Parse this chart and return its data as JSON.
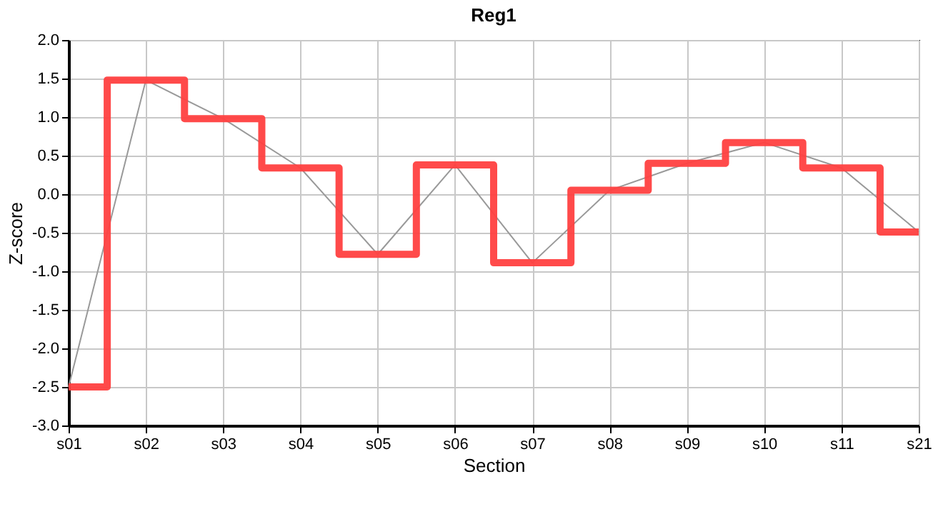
{
  "chart_data": {
    "type": "line",
    "title": "Reg1",
    "xlabel": "Section",
    "ylabel": "Z-score",
    "categories": [
      "s01",
      "s02",
      "s03",
      "s04",
      "s05",
      "s06",
      "s07",
      "s08",
      "s09",
      "s10",
      "s11",
      "s21"
    ],
    "series": [
      {
        "color": "#999999",
        "values": [
          -2.5,
          1.48,
          0.98,
          0.34,
          -0.78,
          0.38,
          -0.89,
          0.05,
          0.4,
          0.67,
          0.34,
          -0.49
        ]
      },
      {
        "type": "step",
        "color": "#ff4040",
        "values": [
          -2.5,
          1.48,
          0.98,
          0.34,
          -0.78,
          0.38,
          -0.89,
          0.05,
          0.4,
          0.67,
          0.34,
          -0.49
        ]
      }
    ],
    "ylim": [
      -3,
      2
    ],
    "yticks": [
      {
        "value": -3,
        "label": "-3.0"
      },
      {
        "value": -2.5,
        "label": "-2.5"
      },
      {
        "value": -2,
        "label": "-2.0"
      },
      {
        "value": -1.5,
        "label": "-1.5"
      },
      {
        "value": -1,
        "label": "-1.0"
      },
      {
        "value": -0.5,
        "label": "-0.5"
      },
      {
        "value": 0,
        "label": "0.0"
      },
      {
        "value": 0.5,
        "label": "0.5"
      },
      {
        "value": 1,
        "label": "1.0"
      },
      {
        "value": 1.5,
        "label": "1.5"
      },
      {
        "value": 2,
        "label": "2.0"
      }
    ],
    "grid": true
  }
}
